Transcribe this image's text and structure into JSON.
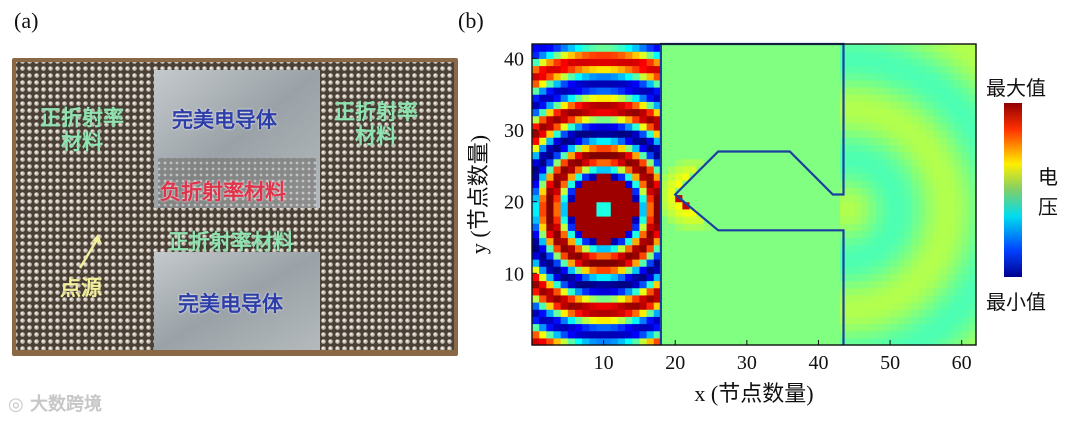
{
  "panel_a": {
    "label": "(a)",
    "regions": {
      "pos_left": "正折射率\n材料",
      "pos_right": "正折射率\n材料",
      "pec_top": "完美电导体",
      "neg": "负折射率材料",
      "pos_mid": "正折射率材料",
      "pec_bottom": "完美电导体",
      "source": "点源"
    },
    "colors": {
      "green_text": "#8fe3b0",
      "blue_text": "#2e3ea8",
      "red_text": "#e0334a",
      "yellow_text": "#f3ee9a"
    }
  },
  "panel_b": {
    "label": "(b)",
    "colorbar": {
      "max_label": "最大值",
      "quantity_label": "电\n压",
      "min_label": "最小值"
    }
  },
  "watermark": "大数跨境",
  "chart_data": {
    "type": "heatmap",
    "title": "",
    "xlabel": "x (节点数量)",
    "ylabel": "y (节点数量)",
    "xlim": [
      0,
      62
    ],
    "ylim": [
      0,
      42
    ],
    "x_ticks": [
      "10",
      "20",
      "30",
      "40",
      "50",
      "60"
    ],
    "y_ticks": [
      "10",
      "20",
      "30",
      "40"
    ],
    "x_tick_values": [
      10,
      20,
      30,
      40,
      50,
      60
    ],
    "y_tick_values": [
      10,
      20,
      30,
      40
    ],
    "colorscale": "jet",
    "color_range": [
      "最小值",
      "最大值"
    ],
    "boundary_polygon_data": [
      [
        18,
        0
      ],
      [
        18,
        42
      ],
      [
        43.5,
        42
      ],
      [
        43.5,
        21
      ],
      [
        42,
        21
      ],
      [
        36,
        27
      ],
      [
        26,
        27
      ],
      [
        20,
        21
      ],
      [
        26,
        16
      ],
      [
        43.5,
        16
      ],
      [
        43.5,
        0
      ]
    ],
    "regions": [
      {
        "name": "left source region",
        "x_range": [
          0,
          18
        ],
        "pattern": "concentric rings",
        "center": [
          10,
          19
        ]
      },
      {
        "name": "upper conductor",
        "x_range": [
          18,
          43.5
        ],
        "y_range": [
          27,
          42
        ],
        "value": "mid"
      },
      {
        "name": "lower conductor",
        "x_range": [
          18,
          43.5
        ],
        "y_range": [
          0,
          16
        ],
        "value": "mid"
      },
      {
        "name": "right region",
        "x_range": [
          43.5,
          62
        ],
        "pattern": "faint diverging arcs",
        "value": "mid"
      }
    ]
  }
}
